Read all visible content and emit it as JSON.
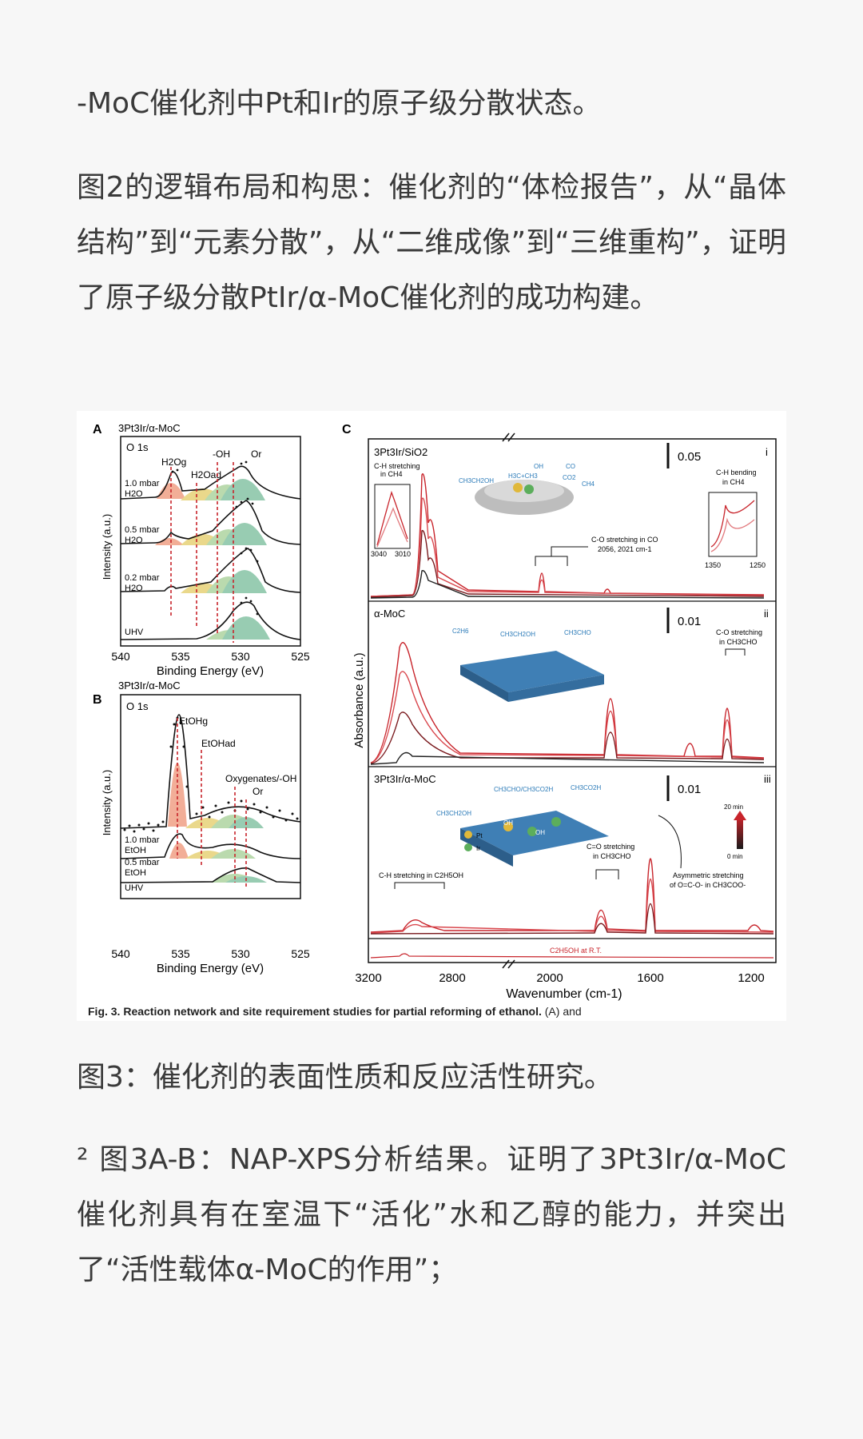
{
  "text": {
    "p0": "-MoC催化剂中Pt和Ir的原子级分散状态。",
    "p1": "图2的逻辑布局和构思：催化剂的“体检报告”，从“晶体结构”到“元素分散”，从“二维成像”到“三维重构”，证明了原子级分散PtIr/α-MoC催化剂的成功构建。",
    "p2": "图3：催化剂的表面性质和反应活性研究。",
    "p3": "² 图3A-B：NAP-XPS分析结果。证明了3Pt3Ir/α-MoC催化剂具有在室温下“活化”水和乙醇的能力，并突出了“活性载体α-MoC的作用”；"
  },
  "figure": {
    "caption_bold": "Fig. 3. Reaction network and site requirement studies for partial reforming of ethanol.",
    "caption_rest": " (A) and",
    "colors": {
      "red": "#c8242b",
      "dark": "#1a1a1a",
      "peach": "#ef9a7e",
      "yellow": "#e6cf6f",
      "green": "#7fc0a0"
    },
    "panelA": {
      "letter": "A",
      "sample": "3Pt3Ir/α-MoC",
      "region": "O 1s",
      "ylabel": "Intensity (a.u.)",
      "xlabel": "Binding Energy (eV)",
      "xticks": [
        "540",
        "535",
        "530",
        "525"
      ],
      "peaks": [
        "H2Og",
        "H2Oad",
        "-OH",
        "Or"
      ],
      "traces": [
        {
          "l1": "1.0 mbar",
          "l2": "H2O"
        },
        {
          "l1": "0.5 mbar",
          "l2": "H2O"
        },
        {
          "l1": "0.2 mbar",
          "l2": "H2O"
        },
        {
          "l1": "UHV",
          "l2": ""
        }
      ]
    },
    "panelB": {
      "letter": "B",
      "sample": "3Pt3Ir/α-MoC",
      "region": "O 1s",
      "ylabel": "Intensity (a.u.)",
      "xlabel": "Binding Energy (eV)",
      "xticks": [
        "540",
        "535",
        "530",
        "525"
      ],
      "peaks": [
        "EtOHg",
        "EtOHad",
        "Oxygenates/-OH",
        "Or"
      ],
      "traces": [
        {
          "l1": "1.0 mbar",
          "l2": "EtOH"
        },
        {
          "l1": "0.5 mbar",
          "l2": "EtOH"
        },
        {
          "l1": "UHV",
          "l2": ""
        }
      ]
    },
    "panelC": {
      "letter": "C",
      "ylabel": "Absorbance (a.u.)",
      "xlabel": "Wavenumber (cm-1)",
      "xticks": [
        "3200",
        "2800",
        "2000",
        "1600",
        "1200"
      ],
      "sub": [
        {
          "name": "3Pt3Ir/SiO2",
          "roman": "i",
          "scale": "0.05",
          "labels": [
            "C-H stretching",
            "in CH4",
            "3040",
            "3010",
            "C-O stretching in CO",
            "2056, 2021 cm-1",
            "C-H bending",
            "in CH4",
            "1350",
            "1250",
            "CH3CH2OH",
            "H3C+CH3",
            "OH",
            "CO",
            "CO2",
            "CH4"
          ]
        },
        {
          "name": "α-MoC",
          "roman": "ii",
          "scale": "0.01",
          "labels": [
            "C-O stretching",
            "in CH3CHO",
            "C2H6",
            "CH3CH2OH",
            "CH3CHO"
          ]
        },
        {
          "name": "3Pt3Ir/α-MoC",
          "roman": "iii",
          "scale": "0.01",
          "labels": [
            "CH3CHO/CH3CO2H",
            "CH3CO2H",
            "CH3CH2OH",
            "Pt",
            "Ir",
            "OH",
            "OH",
            "C-H stretching in C2H5OH",
            "C=O stretching",
            "in CH3CHO",
            "Asymmetric stretching",
            "of O=C-O- in CH3COO-",
            "20 min",
            "0 min",
            "C2H5OH at R.T."
          ]
        }
      ]
    }
  }
}
